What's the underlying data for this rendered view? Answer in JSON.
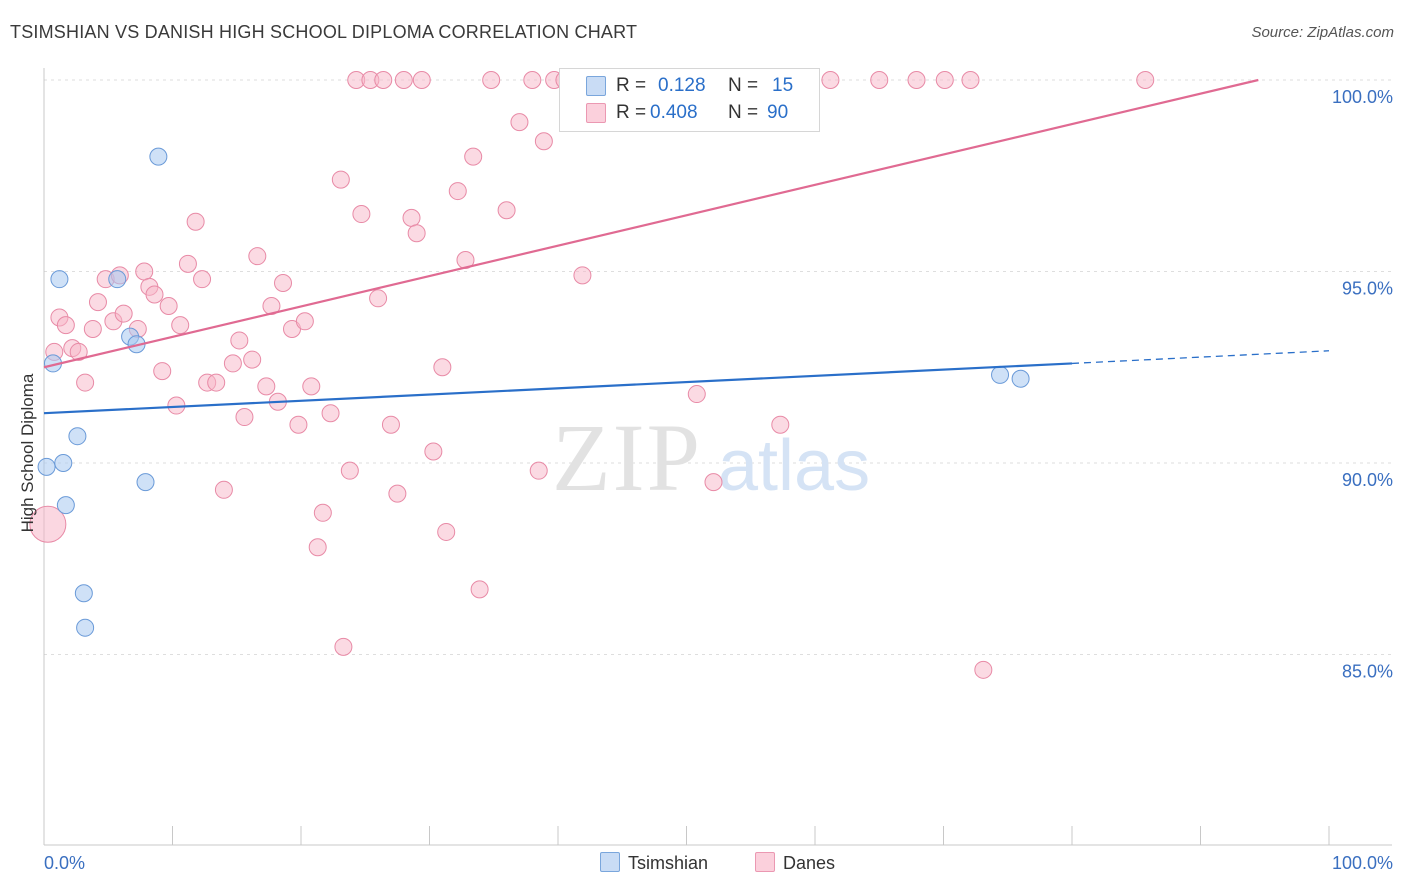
{
  "header": {
    "title": "TSIMSHIAN VS DANISH HIGH SCHOOL DIPLOMA CORRELATION CHART",
    "source": "Source: ZipAtlas.com"
  },
  "watermark": {
    "zip": "ZIP",
    "atlas": "atlas"
  },
  "legend": {
    "rows": [
      {
        "r_label": "R =",
        "r_value": "0.128",
        "n_label": "N =",
        "n_value": "15",
        "color": "#a8c8f0"
      },
      {
        "r_label": "R =",
        "r_value": "0.408",
        "n_label": "N =",
        "n_value": "90",
        "color": "#f7b6c8"
      }
    ]
  },
  "bottom_legend": {
    "tsimshian": "Tsimshian",
    "danes": "Danes"
  },
  "chart_data": {
    "type": "scatter",
    "title": "TSIMSHIAN VS DANISH HIGH SCHOOL DIPLOMA CORRELATION CHART",
    "xlabel": "",
    "ylabel": "High School Diploma",
    "xlim": [
      0,
      100
    ],
    "ylim": [
      80.5,
      100.6
    ],
    "x_tick_labels": [
      "0.0%",
      "100.0%"
    ],
    "y_ticks": [
      {
        "value": 100,
        "label": "100.0%"
      },
      {
        "value": 95,
        "label": "95.0%"
      },
      {
        "value": 90,
        "label": "90.0%"
      },
      {
        "value": 85,
        "label": "85.0%"
      }
    ],
    "colors": {
      "tsimshian_fill": "#a8c8f0",
      "tsimshian_stroke": "#6a9ad8",
      "tsimshian_line": "#2a6fc9",
      "danes_fill": "#f7b6c8",
      "danes_stroke": "#e88aa6",
      "danes_line": "#e06a92",
      "axis_text": "#3a6fc0",
      "grid": "#dedede"
    },
    "series": [
      {
        "name": "Tsimshian",
        "trend": {
          "x0": 0,
          "y0": 91.3,
          "x1": 80,
          "y1": 92.6,
          "dash_to_x": 100,
          "dash_to_y": 92.93
        },
        "points": [
          [
            0.2,
            89.9
          ],
          [
            0.7,
            92.6
          ],
          [
            1.2,
            94.8
          ],
          [
            1.5,
            90.0
          ],
          [
            1.7,
            88.9
          ],
          [
            2.6,
            90.7
          ],
          [
            3.1,
            86.6
          ],
          [
            3.2,
            85.7
          ],
          [
            5.7,
            94.8
          ],
          [
            6.7,
            93.3
          ],
          [
            7.2,
            93.1
          ],
          [
            7.9,
            89.5
          ],
          [
            8.9,
            98.0
          ],
          [
            74.4,
            92.3
          ],
          [
            76.0,
            92.2
          ]
        ]
      },
      {
        "name": "Danes",
        "trend": {
          "x0": 0,
          "y0": 92.5,
          "x1": 94.5,
          "y1": 100.0
        },
        "points": [
          [
            0.3,
            88.4
          ],
          [
            0.8,
            92.9
          ],
          [
            1.2,
            93.8
          ],
          [
            1.7,
            93.6
          ],
          [
            2.2,
            93.0
          ],
          [
            2.7,
            92.9
          ],
          [
            3.2,
            92.1
          ],
          [
            3.8,
            93.5
          ],
          [
            4.2,
            94.2
          ],
          [
            4.8,
            94.8
          ],
          [
            5.4,
            93.7
          ],
          [
            5.9,
            94.9
          ],
          [
            6.2,
            93.9
          ],
          [
            7.3,
            93.5
          ],
          [
            7.8,
            95.0
          ],
          [
            8.2,
            94.6
          ],
          [
            8.6,
            94.4
          ],
          [
            9.2,
            92.4
          ],
          [
            9.7,
            94.1
          ],
          [
            10.3,
            91.5
          ],
          [
            10.6,
            93.6
          ],
          [
            11.2,
            95.2
          ],
          [
            11.8,
            96.3
          ],
          [
            12.3,
            94.8
          ],
          [
            12.7,
            92.1
          ],
          [
            13.4,
            92.1
          ],
          [
            14.0,
            89.3
          ],
          [
            14.7,
            92.6
          ],
          [
            15.2,
            93.2
          ],
          [
            15.6,
            91.2
          ],
          [
            16.2,
            92.7
          ],
          [
            16.6,
            95.4
          ],
          [
            17.3,
            92.0
          ],
          [
            17.7,
            94.1
          ],
          [
            18.2,
            91.6
          ],
          [
            18.6,
            94.7
          ],
          [
            19.3,
            93.5
          ],
          [
            19.8,
            91.0
          ],
          [
            20.3,
            93.7
          ],
          [
            20.8,
            92.0
          ],
          [
            21.3,
            87.8
          ],
          [
            21.7,
            88.7
          ],
          [
            22.3,
            91.3
          ],
          [
            23.1,
            97.4
          ],
          [
            23.3,
            85.2
          ],
          [
            23.8,
            89.8
          ],
          [
            24.3,
            100.0
          ],
          [
            24.7,
            96.5
          ],
          [
            25.4,
            100.0
          ],
          [
            26.0,
            94.3
          ],
          [
            26.4,
            100.0
          ],
          [
            27.0,
            91.0
          ],
          [
            27.5,
            89.2
          ],
          [
            28.0,
            100.0
          ],
          [
            28.6,
            96.4
          ],
          [
            29.0,
            96.0
          ],
          [
            29.4,
            100.0
          ],
          [
            30.3,
            90.3
          ],
          [
            31.0,
            92.5
          ],
          [
            31.3,
            88.2
          ],
          [
            32.2,
            97.1
          ],
          [
            32.8,
            95.3
          ],
          [
            33.4,
            98.0
          ],
          [
            33.9,
            86.7
          ],
          [
            34.8,
            100.0
          ],
          [
            36.0,
            96.6
          ],
          [
            37.0,
            98.9
          ],
          [
            38.0,
            100.0
          ],
          [
            38.5,
            89.8
          ],
          [
            38.9,
            98.4
          ],
          [
            39.7,
            100.0
          ],
          [
            40.5,
            100.0
          ],
          [
            41.2,
            100.0
          ],
          [
            41.9,
            94.9
          ],
          [
            44.5,
            100.0
          ],
          [
            46.0,
            100.0
          ],
          [
            47.4,
            100.0
          ],
          [
            50.8,
            91.8
          ],
          [
            52.1,
            89.5
          ],
          [
            53.0,
            100.0
          ],
          [
            54.3,
            100.0
          ],
          [
            56.5,
            100.0
          ],
          [
            57.3,
            91.0
          ],
          [
            61.2,
            100.0
          ],
          [
            65.0,
            100.0
          ],
          [
            67.9,
            100.0
          ],
          [
            70.1,
            100.0
          ],
          [
            72.1,
            100.0
          ],
          [
            73.1,
            84.6
          ],
          [
            85.7,
            100.0
          ]
        ]
      }
    ]
  }
}
